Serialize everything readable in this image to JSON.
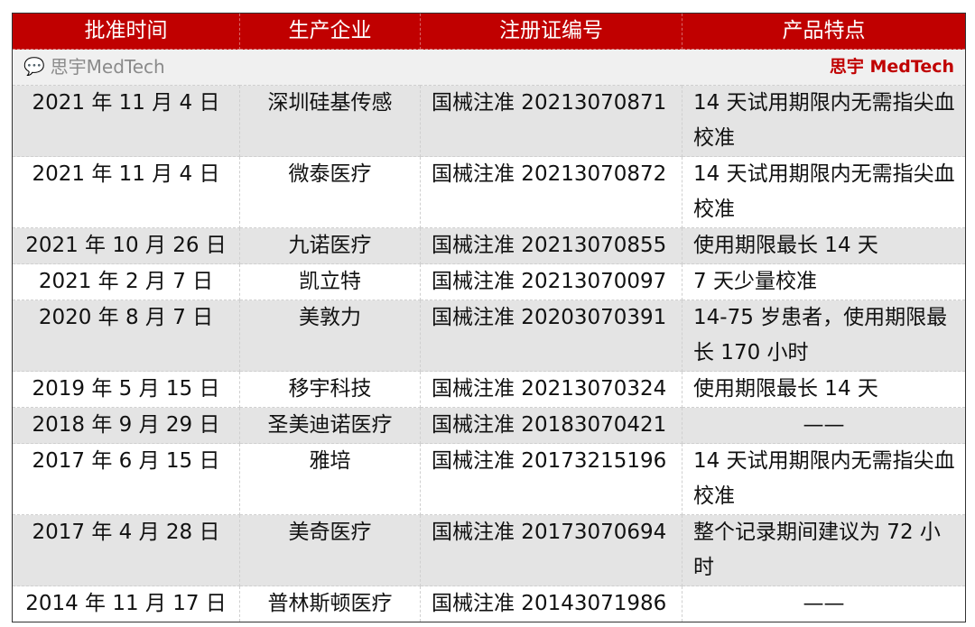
{
  "header": [
    "批准时间",
    "生产企业",
    "注册证编号",
    "产品特点"
  ],
  "brand": "思宇 MedTech",
  "rows": [
    {
      "date": "2021 年 11 月 4 日",
      "company": "深圳硅基传感",
      "reg": "国械注准 20213070871",
      "feature": "14 天试用期限内无需指尖血校准",
      "shade": "gray",
      "tall": true
    },
    {
      "date": "2021 年 11 月 4 日",
      "company": "微泰医疗",
      "reg": "国械注准 20213070872",
      "feature": "14 天试用期限内无需指尖血校准",
      "shade": "white",
      "tall": true
    },
    {
      "date": "2021 年 10 月 26 日",
      "company": "九诺医疗",
      "reg": "国械注准 20213070855",
      "feature": "使用期限最长 14 天",
      "shade": "gray",
      "tall": false
    },
    {
      "date": "2021 年 2 月 7 日",
      "company": "凯立特",
      "reg": "国械注准 20213070097",
      "feature": "7 天少量校准",
      "shade": "white",
      "tall": false
    },
    {
      "date": "2020 年 8 月 7 日",
      "company": "美敦力",
      "reg": "国械注准 20203070391",
      "feature": "14-75 岁患者，使用期限最长 170 小时",
      "shade": "gray",
      "tall": true
    },
    {
      "date": "2019 年 5 月 15 日",
      "company": "移宇科技",
      "reg": "国械注准 20213070324",
      "feature": "使用期限最长 14 天",
      "shade": "white",
      "tall": false
    },
    {
      "date": "2018 年 9 月 29 日",
      "company": "圣美迪诺医疗",
      "reg": "国械注准 20183070421",
      "feature": "——",
      "shade": "gray",
      "tall": false
    },
    {
      "date": "2017 年 6 月 15 日",
      "company": "雅培",
      "reg": "国械注准 20173215196",
      "feature": "14 天试用期限内无需指尖血校准",
      "shade": "white",
      "tall": true
    },
    {
      "date": "2017 年 4 月 28 日",
      "company": "美奇医疗",
      "reg": "国械注准 20173070694",
      "feature": "整个记录期间建议为 72 小时",
      "shade": "gray",
      "tall": true
    },
    {
      "date": "2014 年 11 月 17 日",
      "company": "普林斯顿医疗",
      "reg": "国械注准 20143071986",
      "feature": "——",
      "shade": "white",
      "tall": false
    }
  ],
  "watermark": {
    "icon": "wechat-icon",
    "text": "思宇MedTech"
  },
  "colors": {
    "header_bg": "#c00000",
    "brand_text": "#c00000",
    "row_gray": "#e4e4e4"
  }
}
